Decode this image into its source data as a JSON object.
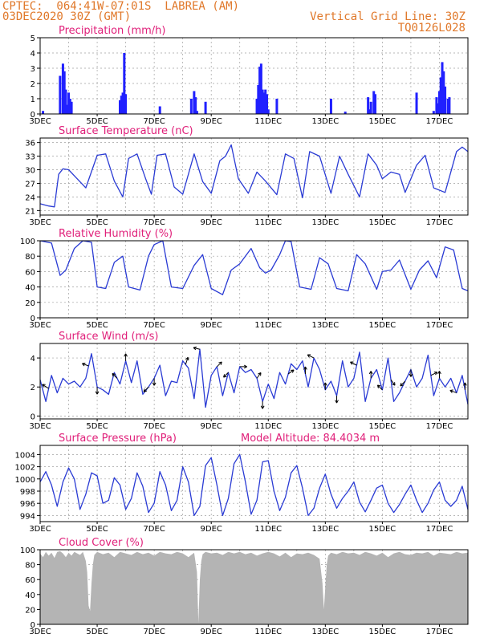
{
  "header": {
    "station": "CPTEC:  064:41W-07:01S  LABREA (AM)",
    "date": "03DEC2020 30Z (GMT)",
    "grid_note": "Vertical Grid Line: 30Z",
    "code": "TQ0126L028"
  },
  "colors": {
    "header": "#e0782a",
    "title": "#e0207a",
    "line": "#2a3bd4",
    "bar": "#2020ff",
    "cloud": "#b4b4b4",
    "grid": "#a0a0a0"
  },
  "x_axis": {
    "days": [
      3,
      18
    ],
    "tick_labels": [
      "3DEC",
      "5DEC",
      "7DEC",
      "9DEC",
      "11DEC",
      "13DEC",
      "15DEC",
      "17DEC"
    ],
    "tick_days": [
      3,
      5,
      7,
      9,
      11,
      13,
      15,
      17
    ]
  },
  "chart_data": [
    {
      "id": "precip",
      "type": "bar",
      "title": "Precipitation (mm/h)",
      "ylim": [
        0,
        5
      ],
      "yticks": [
        0,
        1,
        2,
        3,
        4,
        5
      ],
      "series": [
        {
          "x": [
            3.1,
            3.7,
            3.8,
            3.85,
            3.9,
            3.95,
            4.0,
            4.05,
            4.1,
            5.8,
            5.85,
            5.9,
            5.95,
            6.0,
            7.2,
            8.3,
            8.4,
            8.45,
            8.5,
            8.8,
            10.6,
            10.65,
            10.7,
            10.75,
            10.8,
            10.85,
            10.9,
            10.95,
            11.0,
            11.3,
            13.2,
            13.7,
            14.5,
            14.55,
            14.6,
            14.7,
            14.75,
            16.2,
            16.8,
            16.9,
            16.95,
            17.0,
            17.05,
            17.1,
            17.15,
            17.2,
            17.3,
            17.35
          ],
          "values": [
            0.2,
            2.5,
            3.3,
            2.8,
            1.6,
            0.6,
            1.4,
            1.0,
            0.8,
            0.9,
            1.2,
            1.4,
            4.0,
            1.3,
            0.5,
            1.0,
            1.5,
            1.1,
            0.2,
            0.8,
            1.0,
            1.9,
            3.1,
            3.3,
            1.6,
            1.4,
            1.6,
            1.3,
            0.3,
            1.0,
            1.0,
            0.15,
            1.1,
            0.3,
            0.8,
            1.5,
            1.3,
            1.4,
            0.2,
            1.1,
            0.7,
            1.5,
            2.4,
            3.4,
            2.8,
            1.8,
            1.0,
            1.1
          ]
        }
      ]
    },
    {
      "id": "temp",
      "type": "line",
      "title": "Surface Temperature (nC)",
      "ylim": [
        20,
        37
      ],
      "yticks": [
        21,
        24,
        27,
        30,
        33,
        36
      ],
      "series": [
        {
          "x": [
            3.0,
            3.3,
            3.5,
            3.65,
            3.8,
            4.0,
            4.3,
            4.6,
            5.0,
            5.3,
            5.6,
            5.9,
            6.1,
            6.4,
            6.7,
            6.9,
            7.1,
            7.4,
            7.7,
            8.0,
            8.4,
            8.7,
            9.0,
            9.3,
            9.5,
            9.7,
            9.95,
            10.3,
            10.6,
            10.9,
            11.3,
            11.6,
            11.9,
            12.2,
            12.45,
            12.8,
            13.2,
            13.5,
            13.8,
            14.2,
            14.5,
            14.8,
            15.0,
            15.3,
            15.6,
            15.8,
            16.2,
            16.5,
            16.8,
            17.2,
            17.6,
            17.8,
            18.0
          ],
          "values": [
            22.5,
            22.0,
            21.8,
            29.0,
            30.2,
            30.0,
            28.0,
            26.0,
            33.2,
            33.5,
            27.5,
            24.0,
            32.5,
            33.5,
            28.0,
            24.6,
            33.2,
            33.5,
            26.2,
            24.6,
            33.5,
            27.4,
            24.8,
            32.0,
            33.0,
            35.5,
            28.0,
            24.8,
            29.5,
            27.5,
            24.5,
            33.5,
            32.5,
            23.8,
            34.0,
            33.0,
            24.8,
            33.0,
            29.0,
            24.0,
            33.5,
            31.0,
            28.0,
            29.5,
            29.0,
            25.0,
            31.0,
            33.2,
            26.0,
            25.0,
            34.0,
            35.0,
            34.0
          ]
        }
      ]
    },
    {
      "id": "rh",
      "type": "line",
      "title": "Relative Humidity (%)",
      "ylim": [
        0,
        100
      ],
      "yticks": [
        0,
        20,
        40,
        60,
        80,
        100
      ],
      "series": [
        {
          "x": [
            3.0,
            3.4,
            3.7,
            3.9,
            4.2,
            4.5,
            4.8,
            5.0,
            5.3,
            5.6,
            5.9,
            6.1,
            6.5,
            6.8,
            7.0,
            7.3,
            7.6,
            8.0,
            8.4,
            8.7,
            9.0,
            9.4,
            9.7,
            10.0,
            10.4,
            10.7,
            10.9,
            11.1,
            11.4,
            11.6,
            11.8,
            12.1,
            12.5,
            12.8,
            13.1,
            13.4,
            13.8,
            14.1,
            14.4,
            14.8,
            15.0,
            15.3,
            15.6,
            16.0,
            16.3,
            16.6,
            16.9,
            17.2,
            17.5,
            17.8,
            18.0
          ],
          "values": [
            100,
            97,
            55,
            62,
            90,
            100,
            98,
            40,
            38,
            72,
            80,
            40,
            36,
            80,
            95,
            100,
            40,
            38,
            68,
            82,
            38,
            30,
            62,
            70,
            90,
            65,
            58,
            62,
            82,
            100,
            99,
            40,
            37,
            78,
            70,
            38,
            35,
            82,
            70,
            37,
            60,
            62,
            75,
            37,
            62,
            74,
            52,
            92,
            88,
            38,
            35
          ]
        }
      ]
    },
    {
      "id": "wind",
      "type": "line",
      "title": "Surface Wind (m/s)",
      "ylim": [
        -0.2,
        5
      ],
      "yticks": [
        0,
        2,
        4
      ],
      "series": [
        {
          "x": [
            3.0,
            3.2,
            3.4,
            3.6,
            3.8,
            4.0,
            4.2,
            4.4,
            4.6,
            4.8,
            5.0,
            5.2,
            5.4,
            5.6,
            5.8,
            6.0,
            6.2,
            6.4,
            6.6,
            6.8,
            7.0,
            7.2,
            7.4,
            7.6,
            7.8,
            8.0,
            8.2,
            8.4,
            8.6,
            8.8,
            9.0,
            9.2,
            9.4,
            9.6,
            9.8,
            10.0,
            10.2,
            10.4,
            10.6,
            10.8,
            11.0,
            11.2,
            11.4,
            11.6,
            11.8,
            12.0,
            12.2,
            12.4,
            12.6,
            12.8,
            13.0,
            13.2,
            13.4,
            13.6,
            13.8,
            14.0,
            14.2,
            14.4,
            14.6,
            14.8,
            15.0,
            15.2,
            15.4,
            15.6,
            15.8,
            16.0,
            16.2,
            16.4,
            16.6,
            16.8,
            17.0,
            17.2,
            17.4,
            17.6,
            17.8,
            18.0
          ],
          "values": [
            2.5,
            1.0,
            2.8,
            1.6,
            2.6,
            2.2,
            2.4,
            2.0,
            2.6,
            4.3,
            2.0,
            1.8,
            1.5,
            3.0,
            2.2,
            3.8,
            2.3,
            3.8,
            1.5,
            2.0,
            2.6,
            3.5,
            1.4,
            2.4,
            2.3,
            3.8,
            3.3,
            1.2,
            4.6,
            0.6,
            2.8,
            3.4,
            1.4,
            3.0,
            1.6,
            3.4,
            3.0,
            3.2,
            2.6,
            1.0,
            2.2,
            1.2,
            3.0,
            2.2,
            3.6,
            3.2,
            3.8,
            2.0,
            4.0,
            3.2,
            1.8,
            2.4,
            1.4,
            3.8,
            2.0,
            2.6,
            4.4,
            1.0,
            2.6,
            3.2,
            1.8,
            4.0,
            1.0,
            1.6,
            2.4,
            3.2,
            2.0,
            2.6,
            4.2,
            1.4,
            2.6,
            2.0,
            2.6,
            1.6,
            2.8,
            0.8
          ]
        }
      ],
      "vectors": [
        {
          "x": 3.3,
          "dx": -8,
          "dy": -5
        },
        {
          "x": 4.7,
          "dx": -8,
          "dy": -3
        },
        {
          "x": 5.0,
          "dx": 0,
          "dy": 9
        },
        {
          "x": 5.7,
          "dx": -6,
          "dy": -6
        },
        {
          "x": 6.0,
          "dx": 0,
          "dy": -9
        },
        {
          "x": 6.8,
          "dx": -6,
          "dy": 6
        },
        {
          "x": 7.0,
          "dx": 0,
          "dy": 9
        },
        {
          "x": 8.1,
          "dx": 3,
          "dy": -9
        },
        {
          "x": 8.6,
          "dx": -8,
          "dy": -2
        },
        {
          "x": 9.2,
          "dx": 6,
          "dy": -6
        },
        {
          "x": 9.6,
          "dx": -6,
          "dy": 6
        },
        {
          "x": 10.0,
          "dx": 9,
          "dy": 0
        },
        {
          "x": 10.6,
          "dx": 5,
          "dy": -7
        },
        {
          "x": 10.8,
          "dx": 0,
          "dy": 9
        },
        {
          "x": 11.7,
          "dx": 7,
          "dy": -5
        },
        {
          "x": 12.3,
          "dx": 0,
          "dy": -9
        },
        {
          "x": 12.6,
          "dx": -8,
          "dy": -4
        },
        {
          "x": 13.0,
          "dx": 0,
          "dy": -9
        },
        {
          "x": 13.4,
          "dx": 0,
          "dy": 9
        },
        {
          "x": 14.1,
          "dx": -8,
          "dy": -4
        },
        {
          "x": 14.6,
          "dx": 0,
          "dy": -9
        },
        {
          "x": 15.0,
          "dx": -6,
          "dy": -6
        },
        {
          "x": 15.3,
          "dx": 5,
          "dy": 7
        },
        {
          "x": 15.8,
          "dx": -6,
          "dy": 6
        },
        {
          "x": 16.0,
          "dx": 0,
          "dy": 9
        },
        {
          "x": 16.7,
          "dx": 8,
          "dy": -4
        },
        {
          "x": 17.0,
          "dx": 0,
          "dy": -9
        },
        {
          "x": 17.6,
          "dx": -8,
          "dy": -3
        },
        {
          "x": 17.9,
          "dx": 0,
          "dy": -9
        }
      ]
    },
    {
      "id": "pres",
      "type": "line",
      "title": "Surface Pressure (hPa)",
      "subtitle": "Model Altitude: 84.4034 m",
      "ylim": [
        993,
        1005.5
      ],
      "yticks": [
        994,
        996,
        998,
        1000,
        1002,
        1004
      ],
      "series": [
        {
          "x": [
            3.0,
            3.2,
            3.4,
            3.6,
            3.8,
            4.0,
            4.2,
            4.4,
            4.6,
            4.8,
            5.0,
            5.2,
            5.4,
            5.6,
            5.8,
            6.0,
            6.2,
            6.4,
            6.6,
            6.8,
            7.0,
            7.2,
            7.4,
            7.6,
            7.8,
            8.0,
            8.2,
            8.4,
            8.6,
            8.8,
            9.0,
            9.2,
            9.4,
            9.6,
            9.8,
            10.0,
            10.2,
            10.4,
            10.6,
            10.8,
            11.0,
            11.2,
            11.4,
            11.6,
            11.8,
            12.0,
            12.2,
            12.4,
            12.6,
            12.8,
            13.0,
            13.2,
            13.4,
            13.6,
            13.8,
            14.0,
            14.2,
            14.4,
            14.6,
            14.8,
            15.0,
            15.2,
            15.4,
            15.6,
            15.8,
            16.0,
            16.2,
            16.4,
            16.6,
            16.8,
            17.0,
            17.2,
            17.4,
            17.6,
            17.8,
            18.0
          ],
          "values": [
            999.5,
            1001.2,
            999.0,
            995.5,
            999.5,
            1001.8,
            1000.0,
            995.0,
            997.5,
            1001.0,
            1000.5,
            996.0,
            996.5,
            1000.2,
            999.0,
            995.0,
            996.8,
            1001.0,
            998.8,
            994.5,
            996.0,
            1001.2,
            999.0,
            994.8,
            996.5,
            1002.0,
            999.5,
            994.0,
            995.5,
            1002.2,
            1003.5,
            999.0,
            994.0,
            996.8,
            1002.5,
            1004.0,
            999.5,
            994.2,
            996.5,
            1002.8,
            1003.0,
            998.0,
            994.8,
            997.0,
            1001.0,
            1002.2,
            998.5,
            994.0,
            995.2,
            998.5,
            1000.8,
            997.5,
            995.2,
            996.8,
            998.0,
            999.5,
            996.2,
            994.6,
            996.5,
            998.5,
            999.0,
            996.0,
            994.5,
            995.8,
            997.5,
            999.0,
            996.5,
            994.5,
            996.0,
            998.2,
            999.5,
            996.5,
            995.5,
            996.5,
            998.8,
            995.0
          ]
        }
      ]
    },
    {
      "id": "cloud",
      "type": "area",
      "title": "Cloud Cover (%)",
      "ylim": [
        0,
        100
      ],
      "yticks": [
        0,
        20,
        40,
        60,
        80,
        100
      ],
      "series": [
        {
          "x": [
            3.0,
            3.1,
            3.2,
            3.3,
            3.4,
            3.5,
            3.6,
            3.7,
            3.8,
            3.9,
            4.0,
            4.1,
            4.2,
            4.3,
            4.4,
            4.5,
            4.6,
            4.65,
            4.7,
            4.75,
            4.8,
            4.85,
            4.9,
            5.0,
            5.2,
            5.4,
            5.6,
            5.8,
            6.0,
            6.2,
            6.4,
            6.6,
            6.8,
            7.0,
            7.2,
            7.4,
            7.6,
            7.8,
            8.0,
            8.2,
            8.4,
            8.5,
            8.55,
            8.6,
            8.65,
            8.7,
            8.8,
            9.0,
            9.2,
            9.4,
            9.6,
            9.8,
            10.0,
            10.2,
            10.4,
            10.6,
            10.8,
            11.0,
            11.2,
            11.4,
            11.6,
            11.8,
            12.0,
            12.2,
            12.4,
            12.6,
            12.8,
            12.9,
            12.95,
            13.0,
            13.05,
            13.1,
            13.2,
            13.4,
            13.6,
            13.8,
            14.0,
            14.2,
            14.4,
            14.6,
            14.8,
            15.0,
            15.2,
            15.4,
            15.6,
            15.8,
            16.0,
            16.2,
            16.4,
            16.6,
            16.8,
            17.0,
            17.2,
            17.4,
            17.6,
            17.8,
            18.0
          ],
          "values": [
            95,
            90,
            97,
            92,
            96,
            89,
            97,
            98,
            95,
            90,
            96,
            92,
            97,
            95,
            93,
            97,
            85,
            70,
            25,
            18,
            55,
            80,
            93,
            97,
            94,
            96,
            90,
            97,
            95,
            93,
            97,
            94,
            96,
            92,
            97,
            95,
            94,
            97,
            95,
            90,
            96,
            70,
            2,
            60,
            85,
            94,
            97,
            95,
            96,
            93,
            97,
            95,
            97,
            94,
            96,
            92,
            95,
            97,
            95,
            91,
            96,
            90,
            95,
            94,
            96,
            93,
            88,
            55,
            20,
            50,
            80,
            92,
            96,
            94,
            97,
            95,
            96,
            93,
            97,
            95,
            92,
            96,
            90,
            95,
            97,
            94,
            93,
            96,
            95,
            97,
            92,
            96,
            95,
            94,
            97,
            95,
            96
          ]
        }
      ]
    }
  ]
}
